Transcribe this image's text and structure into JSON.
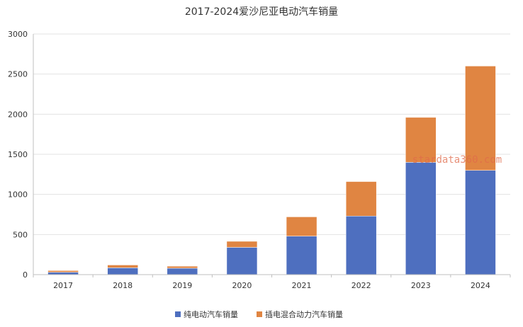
{
  "chart_data": {
    "type": "bar",
    "stacked": true,
    "title": "2017-2024爱沙尼亚电动汽车销量",
    "xlabel": "",
    "ylabel": "",
    "categories": [
      "2017",
      "2018",
      "2019",
      "2020",
      "2021",
      "2022",
      "2023",
      "2024"
    ],
    "series": [
      {
        "name": "纯电动汽车销量",
        "color": "#4e6fbf",
        "values": [
          30,
          85,
          80,
          340,
          480,
          730,
          1400,
          1300
        ]
      },
      {
        "name": "插电混合动力汽车销量",
        "color": "#e08542",
        "values": [
          20,
          35,
          25,
          75,
          240,
          430,
          560,
          1300
        ]
      }
    ],
    "ylim": [
      0,
      3000
    ],
    "yticks": [
      0,
      500,
      1000,
      1500,
      2000,
      2500,
      3000
    ],
    "grid": true,
    "legend_position": "bottom",
    "watermark": "stardata360.com"
  }
}
